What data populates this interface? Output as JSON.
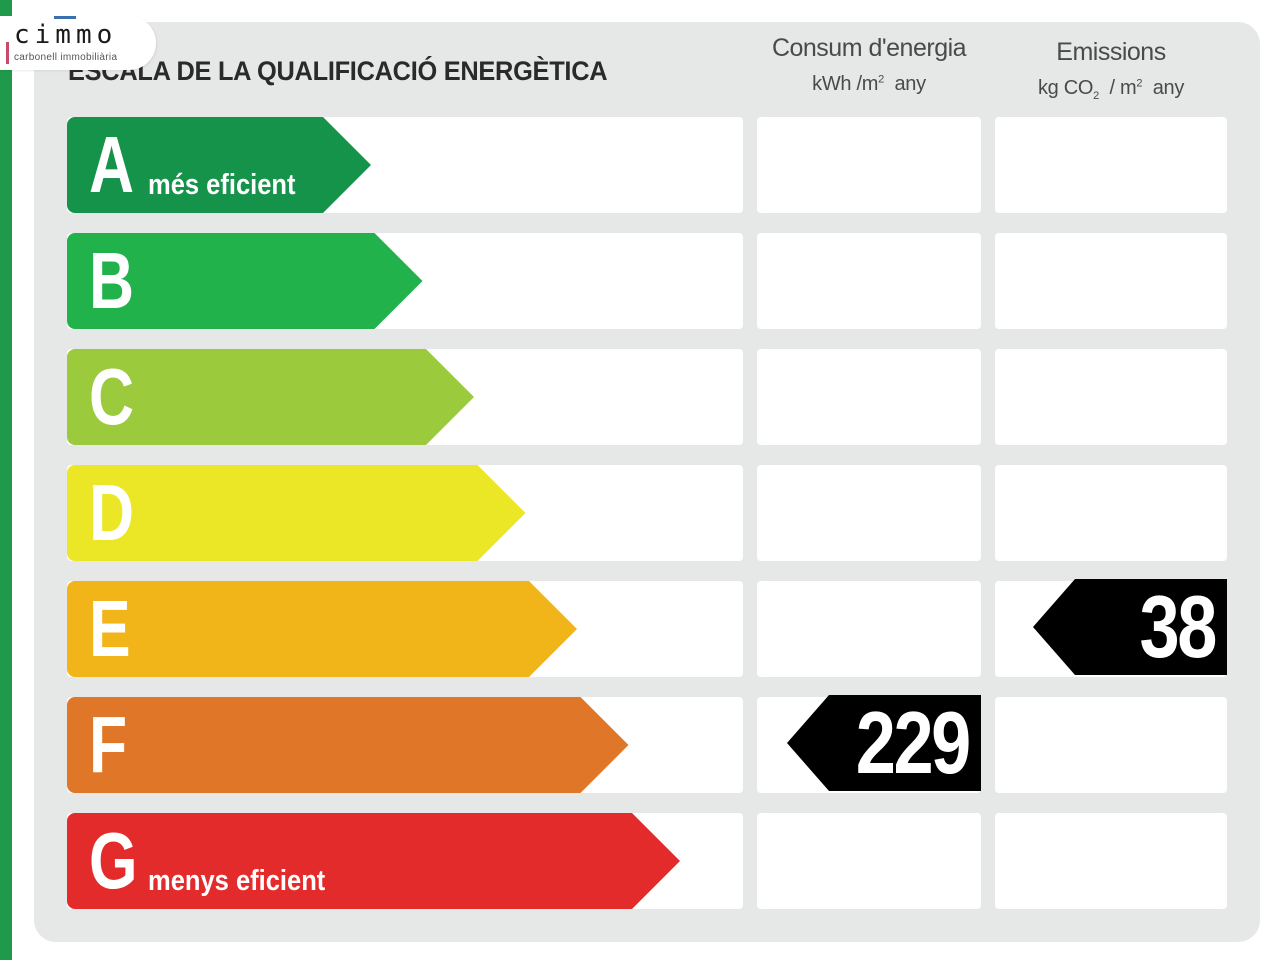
{
  "logo": {
    "name": "cimmo",
    "subtitle": "carbonell immobiliària"
  },
  "chart_data": {
    "type": "table",
    "title": "ESCALA DE LA QUALIFICACIÓ ENERGÈTICA",
    "columns": [
      {
        "title": "Consum d'energia",
        "unit_pre": "kWh /m",
        "unit_exp": "2",
        "unit_post": "any"
      },
      {
        "title": "Emissions",
        "unit_pre": "kg CO",
        "unit_sub": "2",
        "unit_mid": "/ m",
        "unit_exp": "2",
        "unit_post": "any"
      }
    ],
    "categories": [
      "A",
      "B",
      "C",
      "D",
      "E",
      "F",
      "G"
    ],
    "category_notes": {
      "A": "més eficient",
      "G": "menys eficient"
    },
    "category_colors": [
      "#16934a",
      "#22b24c",
      "#9bcb3c",
      "#ebe626",
      "#f1b519",
      "#e07628",
      "#e32b2b"
    ],
    "ratings": [
      {
        "column": "Consum d'energia",
        "category": "F",
        "value": 229
      },
      {
        "column": "Emissions",
        "category": "E",
        "value": 38
      }
    ]
  }
}
